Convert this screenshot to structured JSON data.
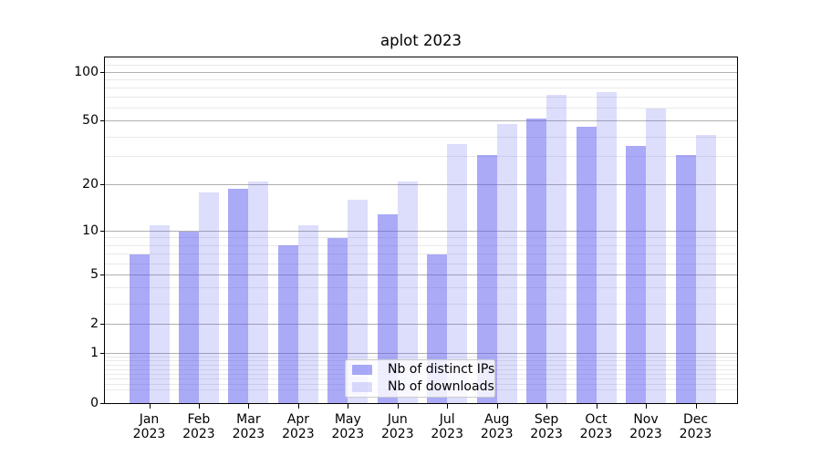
{
  "figure": {
    "title": "aplot 2023",
    "background_color": "#ffffff"
  },
  "chart_data": {
    "type": "bar",
    "title": "aplot 2023",
    "categories": [
      "Jan",
      "Feb",
      "Mar",
      "Apr",
      "May",
      "Jun",
      "Jul",
      "Aug",
      "Sep",
      "Oct",
      "Nov",
      "Dec"
    ],
    "xtick_year_line": "2023",
    "series": [
      {
        "name": "Nb of distinct IPs",
        "base_color": "#5555f0",
        "alpha": 0.5,
        "rendered_color": "#aaaaf7",
        "values": [
          7,
          10,
          19,
          8,
          9,
          13,
          7,
          31,
          52,
          46,
          35,
          31
        ]
      },
      {
        "name": "Nb of downloads",
        "base_color": "#5555f0",
        "alpha": 0.2,
        "rendered_color": "#ddddfb",
        "values": [
          11,
          18,
          21,
          11,
          16,
          21,
          36,
          48,
          73,
          76,
          60,
          41
        ]
      }
    ],
    "yscale": "log1p",
    "ylim": [
      0,
      123
    ],
    "yticks": [
      0,
      1,
      2,
      5,
      10,
      20,
      50,
      100
    ],
    "yticks_minor": [
      0.2,
      0.3,
      0.4,
      0.5,
      0.6,
      0.7,
      0.8,
      0.9,
      3,
      4,
      6,
      7,
      8,
      9,
      30,
      40,
      60,
      70,
      80,
      90,
      110,
      120
    ],
    "grid": {
      "enabled": true,
      "major_color": "#b0b0b0",
      "minor_color": "#e9e9e9"
    },
    "legend": {
      "position": "lower center",
      "border_color": "#cccccc"
    }
  }
}
